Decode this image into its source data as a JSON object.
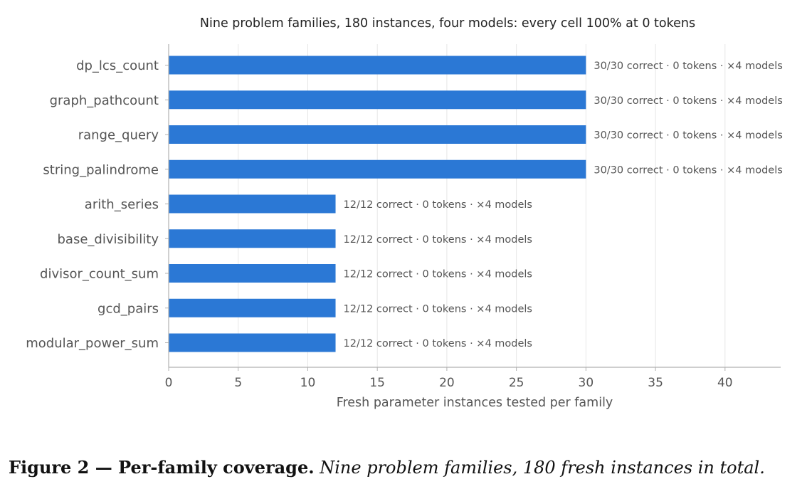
{
  "chart_data": {
    "type": "bar",
    "orientation": "horizontal",
    "title": "Nine problem families, 180 instances, four models: every cell 100% at 0 tokens",
    "xlabel": "Fresh parameter instances tested per family",
    "ylabel": "",
    "categories": [
      "dp_lcs_count",
      "graph_pathcount",
      "range_query",
      "string_palindrome",
      "arith_series",
      "base_divisibility",
      "divisor_count_sum",
      "gcd_pairs",
      "modular_power_sum"
    ],
    "values": [
      30,
      30,
      30,
      30,
      12,
      12,
      12,
      12,
      12
    ],
    "data_labels": [
      "30/30 correct · 0 tokens · ×4 models",
      "30/30 correct · 0 tokens · ×4 models",
      "30/30 correct · 0 tokens · ×4 models",
      "30/30 correct · 0 tokens · ×4 models",
      "12/12 correct · 0 tokens · ×4 models",
      "12/12 correct · 0 tokens · ×4 models",
      "12/12 correct · 0 tokens · ×4 models",
      "12/12 correct · 0 tokens · ×4 models",
      "12/12 correct · 0 tokens · ×4 models"
    ],
    "xlim": [
      0,
      44
    ],
    "xticks": [
      0,
      5,
      10,
      15,
      20,
      25,
      30,
      35,
      40
    ],
    "grid": "vertical",
    "bar_color": "#2b78d5",
    "grid_color": "#e6e6e6",
    "axis_color": "#b0b0b0"
  },
  "caption": {
    "head": "Figure 2 — Per-family coverage.",
    "body": "Nine problem families, 180 fresh instances in total."
  }
}
